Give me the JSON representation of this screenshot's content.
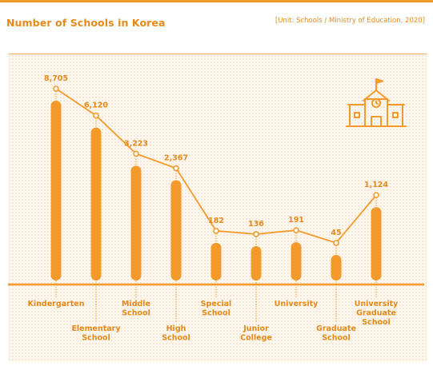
{
  "header": {
    "title": "Number of Schools in Korea",
    "source": "[Unit: Schools / Ministry of Education, 2020]"
  },
  "colors": {
    "accent": "#f39a2b",
    "text": "#e58a1a",
    "background": "#fdf7ee"
  },
  "icon": "school-building-icon",
  "chart_data": {
    "type": "bar",
    "title": "Number of Schools in Korea",
    "categories": [
      "Kindergarten",
      "Elementary School",
      "Middle School",
      "High School",
      "Special School",
      "Junior College",
      "University",
      "Graduate School",
      "University Graduate School"
    ],
    "category_label_lines": [
      [
        "Kindergarten"
      ],
      [
        "Elementary",
        "School"
      ],
      [
        "Middle",
        "School"
      ],
      [
        "High",
        "School"
      ],
      [
        "Special",
        "School"
      ],
      [
        "Junior",
        "College"
      ],
      [
        "University"
      ],
      [
        "Graduate",
        "School"
      ],
      [
        "University",
        "Graduate",
        "School"
      ]
    ],
    "values": [
      8705,
      6120,
      3223,
      2367,
      182,
      136,
      191,
      45,
      1124
    ],
    "value_labels": [
      "8,705",
      "6,120",
      "3,223",
      "2,367",
      "182",
      "136",
      "191",
      "45",
      "1,124"
    ],
    "overlay": "line connecting value markers",
    "label_positions": [
      "below",
      "above",
      "below",
      "above",
      "below",
      "above",
      "below",
      "above",
      "below"
    ],
    "xlabel": "",
    "ylabel": "",
    "grid": false,
    "legend": "none"
  }
}
